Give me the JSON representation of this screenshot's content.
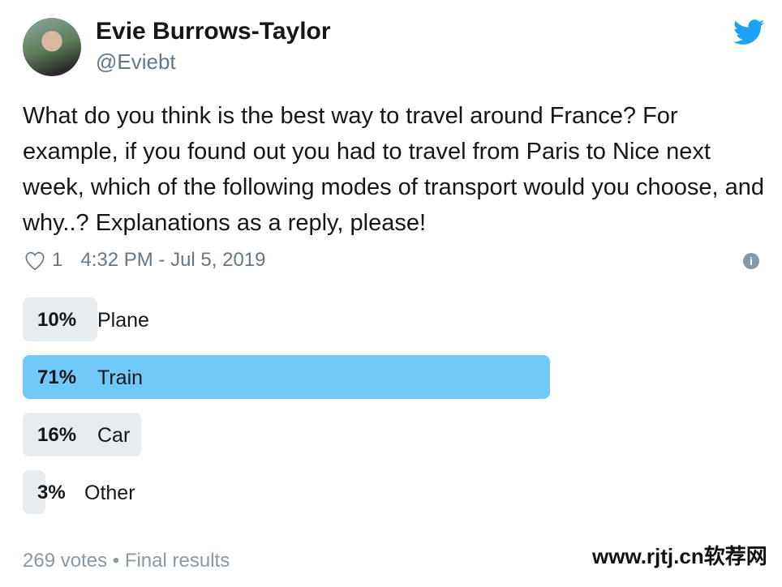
{
  "tweet": {
    "author_name": "Evie Burrows-Taylor",
    "handle": "@Eviebt",
    "text": "What do you think is the best way to travel around France? For example, if you found out you had to travel from Paris to Nice next week, which of the following modes of transport would you choose, and why..? Explanations as a reply, please!",
    "likes": "1",
    "timestamp": "4:32 PM - Jul 5, 2019",
    "icons": {
      "brand": "twitter-bird-icon",
      "like": "heart-icon",
      "info": "info-icon"
    }
  },
  "poll": {
    "options": [
      {
        "percent_label": "10%",
        "label": "Plane",
        "percent": 10
      },
      {
        "percent_label": "71%",
        "label": "Train",
        "percent": 71,
        "winner": true
      },
      {
        "percent_label": "16%",
        "label": "Car",
        "percent": 16
      },
      {
        "percent_label": "3%",
        "label": "Other",
        "percent": 3
      }
    ],
    "footer": "269 votes • Final results"
  },
  "colors": {
    "winner_bar": "#71c9f8",
    "bar": "#e6ecf0",
    "twitter_blue": "#1da1f2"
  },
  "watermark": "www.rjtj.cn软荐网"
}
